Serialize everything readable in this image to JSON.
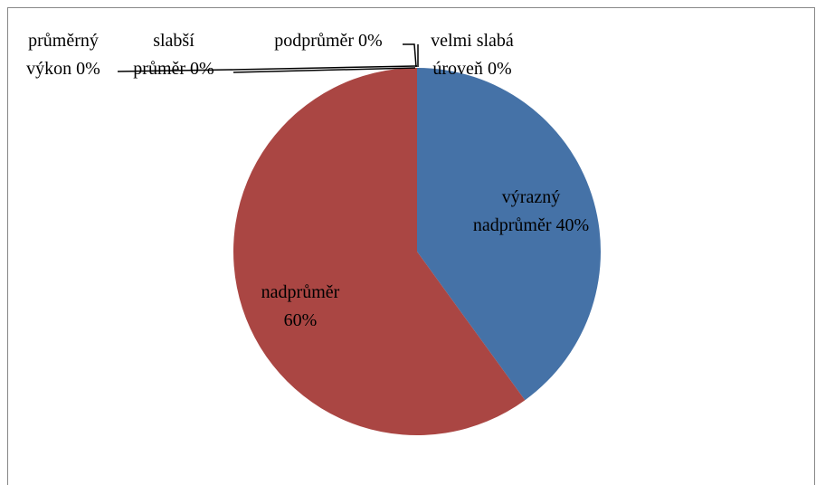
{
  "chart_data": {
    "type": "pie",
    "categories": [
      "výrazný nadprůměr",
      "nadprůměr",
      "průměrný výkon",
      "slabší průměr",
      "podprůměr",
      "velmi slabá úroveň"
    ],
    "values": [
      40,
      60,
      0,
      0,
      0,
      0
    ],
    "value_labels": [
      "40%",
      "60%",
      "0%",
      "0%",
      "0%",
      "0%"
    ],
    "colors": [
      "#4572a7",
      "#aa4643",
      "#89a54e",
      "#71588f",
      "#4198af",
      "#db843d"
    ]
  }
}
